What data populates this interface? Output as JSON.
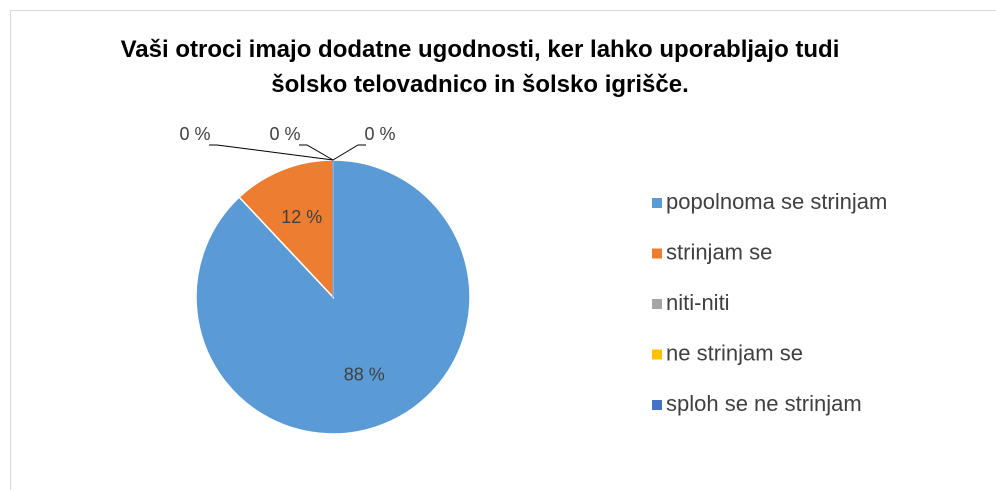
{
  "chart_data": {
    "type": "pie",
    "title": "Vaši otroci imajo dodatne ugodnosti, ker lahko uporabljajo tudi šolsko telovadnico in šolsko igrišče.",
    "categories": [
      "popolnoma se strinjam",
      "strinjam se",
      "niti-niti",
      "ne strinjam se",
      "sploh se ne strinjam"
    ],
    "values": [
      88,
      12,
      0,
      0,
      0
    ],
    "value_labels": [
      "88 %",
      "12 %",
      "0 %",
      "0 %",
      "0 %"
    ],
    "colors": [
      "#5b9bd5",
      "#ed7d31",
      "#a5a5a5",
      "#ffc000",
      "#4472c4"
    ],
    "legend": "right"
  }
}
